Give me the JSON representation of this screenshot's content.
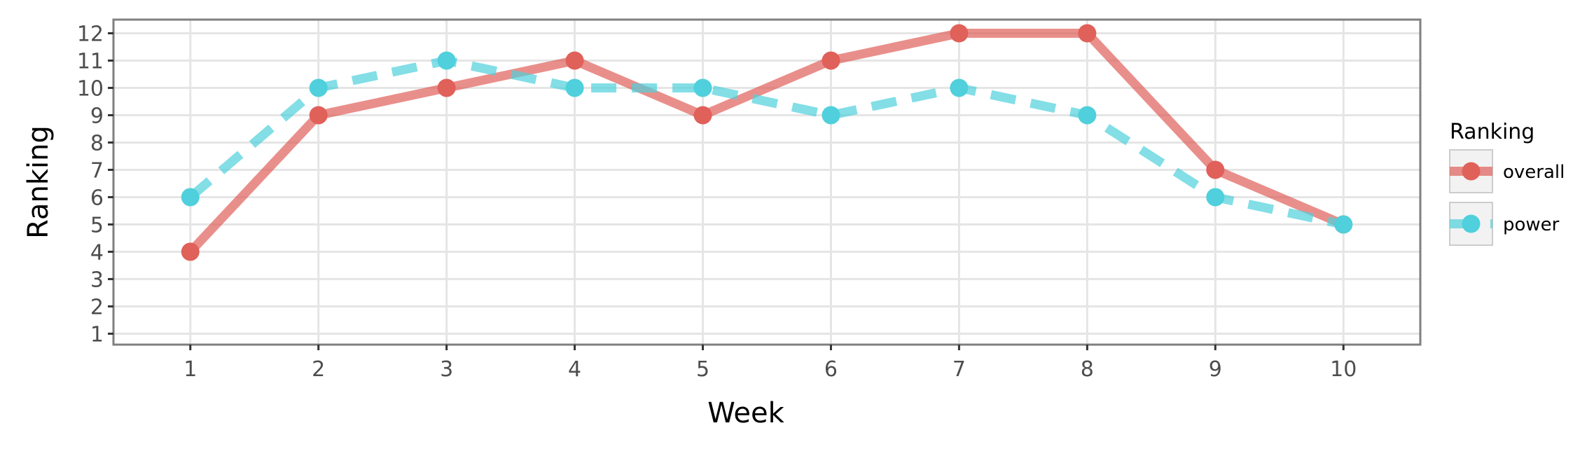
{
  "chart_data": {
    "type": "line",
    "xlabel": "Week",
    "ylabel": "Ranking",
    "x": [
      1,
      2,
      3,
      4,
      5,
      6,
      7,
      8,
      9,
      10
    ],
    "xlim": [
      0.4,
      10.6
    ],
    "ylim": [
      12.5,
      0.6
    ],
    "y_reversed": true,
    "y_ticks": [
      1,
      2,
      3,
      4,
      5,
      6,
      7,
      8,
      9,
      10,
      11,
      12
    ],
    "x_ticks": [
      1,
      2,
      3,
      4,
      5,
      6,
      7,
      8,
      9,
      10
    ],
    "grid": true,
    "legend": {
      "title": "Ranking",
      "position": "right"
    },
    "series": [
      {
        "name": "overall",
        "values": [
          4,
          9,
          10,
          11,
          9,
          11,
          12,
          12,
          7,
          5
        ],
        "color": "#e0605a",
        "line_style": "solid"
      },
      {
        "name": "power",
        "values": [
          6,
          10,
          11,
          10,
          10,
          9,
          10,
          9,
          6,
          5
        ],
        "color": "#4fd0dc",
        "line_style": "dashed"
      }
    ]
  }
}
